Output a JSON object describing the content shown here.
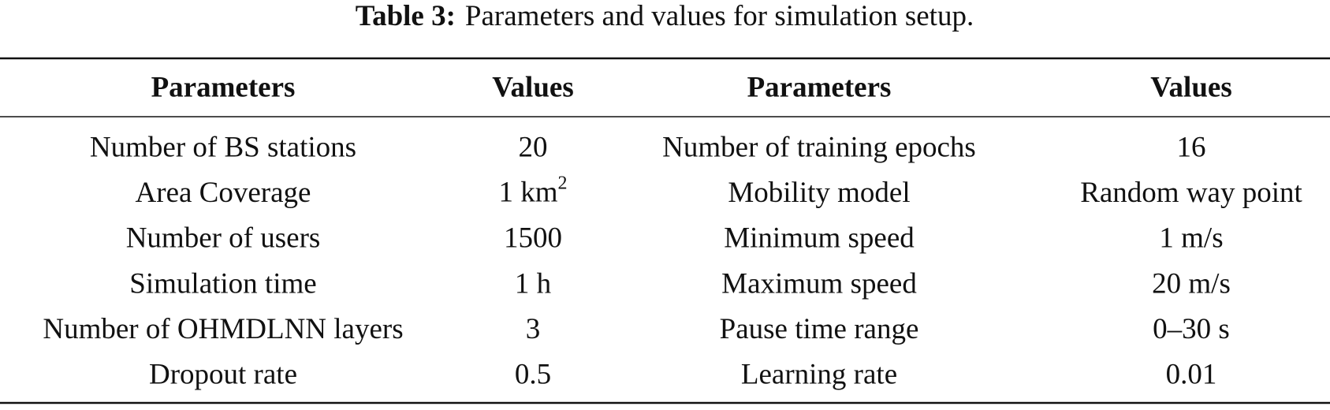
{
  "caption": {
    "label": "Table 3:",
    "text": "Parameters and values for simulation setup."
  },
  "table": {
    "header": [
      "Parameters",
      "Values",
      "Parameters",
      "Values"
    ],
    "rows": [
      [
        "Number of BS stations",
        "20",
        "Number of training epochs",
        "16"
      ],
      [
        "Area Coverage",
        {
          "base": "1 km",
          "sup": "2"
        },
        "Mobility model",
        "Random way point"
      ],
      [
        "Number of users",
        "1500",
        "Minimum speed",
        "1 m/s"
      ],
      [
        "Simulation time",
        "1 h",
        "Maximum speed",
        "20 m/s"
      ],
      [
        "Number of OHMDLNN layers",
        "3",
        "Pause time range",
        "0–30 s"
      ],
      [
        "Dropout rate",
        "0.5",
        "Learning rate",
        "0.01"
      ]
    ]
  }
}
